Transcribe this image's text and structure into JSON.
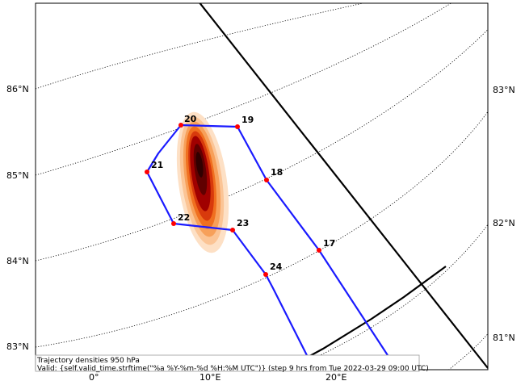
{
  "map": {
    "lat_labels_left": [
      "86°N",
      "85°N",
      "84°N",
      "83°N"
    ],
    "lat_labels_right": [
      "83°N",
      "82°N",
      "81°N"
    ],
    "lon_labels_bottom": [
      "0°",
      "10°E",
      "20°E"
    ],
    "colors": {
      "track": "#1a1aff",
      "waypoint": "#ff0000",
      "boundary": "#000000",
      "density_low": "#fde0c5",
      "density_mid": "#f07020",
      "density_high": "#a00000",
      "density_core": "#300000"
    }
  },
  "waypoints": [
    {
      "label": "17"
    },
    {
      "label": "18"
    },
    {
      "label": "19"
    },
    {
      "label": "20"
    },
    {
      "label": "21"
    },
    {
      "label": "22"
    },
    {
      "label": "23"
    },
    {
      "label": "24"
    }
  ],
  "caption": {
    "line1": "Trajectory densities 950 hPa",
    "line2": "Valid: {self.valid_time.strftime(\"%a %Y-%m-%d %H:%M UTC\")} (step 9 hrs from Tue 2022-03-29 09:00 UTC)"
  }
}
